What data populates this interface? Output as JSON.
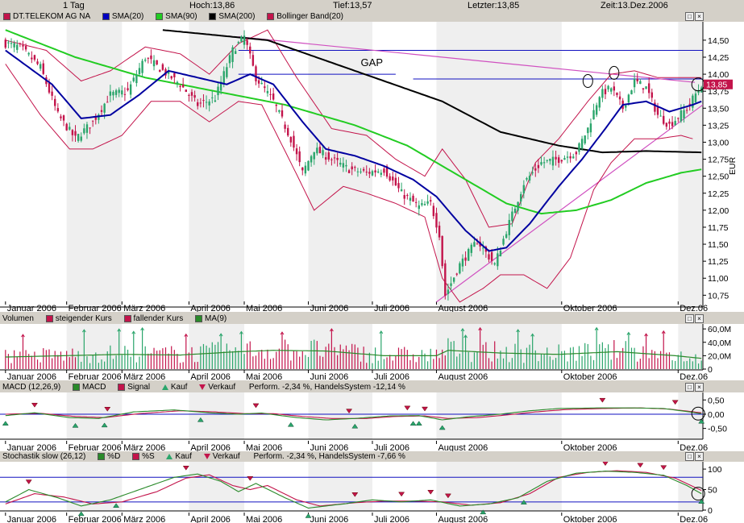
{
  "topbar": {
    "interval": "1 Tag",
    "high": "Hoch:13,86",
    "low": "Tief:13,57",
    "last": "Letzter:13,85",
    "time": "Zeit:13.Dez.2006"
  },
  "colors": {
    "price_up": "#c3144b",
    "price_down": "#2aa56b",
    "sma20": "#0000a0",
    "sma90": "#22cc22",
    "sma200": "#000000",
    "bollinger": "#c3144b",
    "volume_ma": "#2a8a2a",
    "ref_line": "#1010c0",
    "trend_line": "#d050c0",
    "price_label_bg": "#c3144b"
  },
  "months": [
    "Januar 2006",
    "Februar 2006",
    "März 2006",
    "April 2006",
    "Mai 2006",
    "Juni 2006",
    "Juli 2006",
    "August 2006",
    "Oktober 2006",
    "Dez.06"
  ],
  "price_panel": {
    "legend": [
      {
        "label": "DT.TELEKOM AG NA",
        "color": "#c3144b"
      },
      {
        "label": "SMA(20)",
        "color": "#0000c0"
      },
      {
        "label": "SMA(90)",
        "color": "#22cc22"
      },
      {
        "label": "SMA(200)",
        "color": "#000000"
      },
      {
        "label": "Bollinger Band(20)",
        "color": "#c3144b"
      }
    ],
    "annotation": "GAP",
    "current_price_label": "13,85",
    "yunit": "EUR",
    "ylim": [
      10.6,
      14.7
    ],
    "yticks": [
      "10,75",
      "11,00",
      "11,25",
      "11,50",
      "11,75",
      "12,00",
      "12,25",
      "12,50",
      "12,75",
      "13,00",
      "13,25",
      "13,50",
      "13,75",
      "14,00",
      "14,25",
      "14,50"
    ]
  },
  "volume_panel": {
    "legend": [
      {
        "label": "Volumen",
        "marker": "none"
      },
      {
        "label": "steigender Kurs",
        "color": "#c3144b"
      },
      {
        "label": "fallender Kurs",
        "color": "#c3144b"
      },
      {
        "label": "MA(9)",
        "color": "#2a8a2a"
      }
    ],
    "ylim": [
      0,
      65
    ],
    "yticks": [
      "60,0M",
      "40,0M",
      "20,0M",
      "0"
    ]
  },
  "macd_panel": {
    "legend": [
      {
        "label": "MACD (12,26,9)",
        "marker": "none"
      },
      {
        "label": "MACD",
        "color": "#2a8a2a"
      },
      {
        "label": "Signal",
        "color": "#c3144b"
      },
      {
        "label": "Kauf",
        "marker": "up"
      },
      {
        "label": "Verkauf",
        "marker": "down"
      },
      {
        "label": "Perform. -2,34 %, HandelsSystem -12,14 %",
        "marker": "none"
      }
    ],
    "ylim": [
      -0.85,
      0.65
    ],
    "yticks": [
      "0,50",
      "0,00",
      "-0,50"
    ]
  },
  "stoch_panel": {
    "legend": [
      {
        "label": "Stochastik slow (26,12)",
        "marker": "none"
      },
      {
        "label": "%D",
        "color": "#2a8a2a"
      },
      {
        "label": "%S",
        "color": "#c3144b"
      },
      {
        "label": "Kauf",
        "marker": "up"
      },
      {
        "label": "Verkauf",
        "marker": "down"
      },
      {
        "label": "Perform. -2,34 %, HandelsSystem -7,66 %",
        "marker": "none"
      }
    ],
    "ylim": [
      0,
      110
    ],
    "yticks": [
      "100",
      "50",
      "0"
    ]
  },
  "chart_data": {
    "type": "line",
    "title": "DT.TELEKOM AG NA",
    "ylabel": "EUR",
    "trading_days": 240,
    "month_start_index": [
      0,
      21,
      40,
      63,
      82,
      104,
      126,
      148,
      191,
      231
    ],
    "price_waypoints": [
      [
        0,
        14.45
      ],
      [
        5,
        14.4
      ],
      [
        12,
        14.1
      ],
      [
        18,
        13.4
      ],
      [
        24,
        13.05
      ],
      [
        30,
        13.3
      ],
      [
        36,
        13.7
      ],
      [
        42,
        13.75
      ],
      [
        48,
        14.25
      ],
      [
        54,
        14.05
      ],
      [
        60,
        13.85
      ],
      [
        66,
        13.55
      ],
      [
        72,
        13.65
      ],
      [
        78,
        14.35
      ],
      [
        82,
        14.55
      ],
      [
        86,
        13.95
      ],
      [
        92,
        13.6
      ],
      [
        98,
        13.05
      ],
      [
        102,
        12.55
      ],
      [
        106,
        12.9
      ],
      [
        112,
        12.75
      ],
      [
        118,
        12.6
      ],
      [
        124,
        12.55
      ],
      [
        130,
        12.6
      ],
      [
        136,
        12.25
      ],
      [
        142,
        12.05
      ],
      [
        146,
        12.1
      ],
      [
        149,
        11.65
      ],
      [
        151,
        10.75
      ],
      [
        156,
        11.2
      ],
      [
        162,
        11.55
      ],
      [
        168,
        11.2
      ],
      [
        172,
        11.7
      ],
      [
        178,
        12.4
      ],
      [
        184,
        12.7
      ],
      [
        190,
        12.75
      ],
      [
        196,
        12.85
      ],
      [
        200,
        13.2
      ],
      [
        204,
        13.7
      ],
      [
        208,
        13.8
      ],
      [
        212,
        13.5
      ],
      [
        216,
        13.9
      ],
      [
        220,
        13.8
      ],
      [
        224,
        13.4
      ],
      [
        228,
        13.25
      ],
      [
        234,
        13.5
      ],
      [
        239,
        13.85
      ]
    ],
    "sma20_waypoints": [
      [
        0,
        14.35
      ],
      [
        16,
        13.85
      ],
      [
        26,
        13.35
      ],
      [
        36,
        13.4
      ],
      [
        46,
        13.7
      ],
      [
        56,
        14.05
      ],
      [
        66,
        13.95
      ],
      [
        76,
        13.85
      ],
      [
        84,
        14.0
      ],
      [
        92,
        13.85
      ],
      [
        102,
        13.3
      ],
      [
        110,
        12.9
      ],
      [
        120,
        12.8
      ],
      [
        130,
        12.65
      ],
      [
        140,
        12.45
      ],
      [
        148,
        12.2
      ],
      [
        158,
        11.7
      ],
      [
        166,
        11.4
      ],
      [
        172,
        11.45
      ],
      [
        180,
        11.8
      ],
      [
        190,
        12.35
      ],
      [
        198,
        12.75
      ],
      [
        206,
        13.2
      ],
      [
        212,
        13.55
      ],
      [
        220,
        13.6
      ],
      [
        228,
        13.45
      ],
      [
        236,
        13.55
      ],
      [
        239,
        13.6
      ]
    ],
    "sma90_waypoints": [
      [
        0,
        14.65
      ],
      [
        24,
        14.25
      ],
      [
        48,
        13.95
      ],
      [
        72,
        13.75
      ],
      [
        96,
        13.55
      ],
      [
        120,
        13.25
      ],
      [
        138,
        12.95
      ],
      [
        150,
        12.65
      ],
      [
        162,
        12.35
      ],
      [
        172,
        12.1
      ],
      [
        184,
        11.95
      ],
      [
        196,
        12.0
      ],
      [
        208,
        12.15
      ],
      [
        220,
        12.4
      ],
      [
        232,
        12.55
      ],
      [
        239,
        12.6
      ]
    ],
    "sma200_waypoints": [
      [
        54,
        14.65
      ],
      [
        90,
        14.5
      ],
      [
        120,
        14.05
      ],
      [
        150,
        13.6
      ],
      [
        170,
        13.15
      ],
      [
        190,
        12.95
      ],
      [
        205,
        12.85
      ],
      [
        220,
        12.87
      ],
      [
        239,
        12.85
      ]
    ],
    "bb_upper_waypoints": [
      [
        0,
        14.5
      ],
      [
        14,
        14.35
      ],
      [
        26,
        13.9
      ],
      [
        36,
        14.05
      ],
      [
        48,
        14.4
      ],
      [
        60,
        14.3
      ],
      [
        70,
        14.0
      ],
      [
        80,
        14.45
      ],
      [
        90,
        14.65
      ],
      [
        100,
        13.95
      ],
      [
        112,
        13.2
      ],
      [
        124,
        13.1
      ],
      [
        134,
        12.75
      ],
      [
        144,
        12.5
      ],
      [
        150,
        12.9
      ],
      [
        158,
        12.45
      ],
      [
        166,
        11.75
      ],
      [
        174,
        11.8
      ],
      [
        182,
        12.7
      ],
      [
        190,
        13.05
      ],
      [
        200,
        13.6
      ],
      [
        208,
        14.0
      ],
      [
        216,
        14.05
      ],
      [
        224,
        13.95
      ],
      [
        232,
        13.95
      ],
      [
        239,
        13.95
      ]
    ],
    "bb_lower_waypoints": [
      [
        0,
        14.15
      ],
      [
        12,
        13.4
      ],
      [
        22,
        12.9
      ],
      [
        30,
        12.9
      ],
      [
        40,
        13.1
      ],
      [
        50,
        13.6
      ],
      [
        60,
        13.6
      ],
      [
        70,
        13.3
      ],
      [
        80,
        13.6
      ],
      [
        88,
        13.55
      ],
      [
        98,
        12.7
      ],
      [
        106,
        12.0
      ],
      [
        116,
        12.35
      ],
      [
        124,
        12.25
      ],
      [
        134,
        12.1
      ],
      [
        144,
        11.9
      ],
      [
        150,
        11.0
      ],
      [
        156,
        10.65
      ],
      [
        164,
        10.85
      ],
      [
        170,
        11.05
      ],
      [
        178,
        11.05
      ],
      [
        186,
        10.85
      ],
      [
        194,
        11.3
      ],
      [
        202,
        12.3
      ],
      [
        208,
        12.7
      ],
      [
        216,
        13.05
      ],
      [
        224,
        13.05
      ],
      [
        232,
        13.1
      ],
      [
        236,
        13.05
      ]
    ],
    "volume_ma_waypoints": [
      [
        0,
        18
      ],
      [
        20,
        20
      ],
      [
        40,
        22
      ],
      [
        60,
        21
      ],
      [
        80,
        26
      ],
      [
        92,
        28
      ],
      [
        110,
        27
      ],
      [
        130,
        20
      ],
      [
        148,
        20
      ],
      [
        152,
        28
      ],
      [
        170,
        24
      ],
      [
        190,
        22
      ],
      [
        210,
        26
      ],
      [
        230,
        20
      ],
      [
        239,
        16
      ]
    ],
    "macd_waypoints": [
      [
        0,
        -0.05
      ],
      [
        10,
        0.05
      ],
      [
        22,
        -0.12
      ],
      [
        32,
        -0.15
      ],
      [
        44,
        0.08
      ],
      [
        58,
        0.15
      ],
      [
        70,
        0.05
      ],
      [
        80,
        0.0
      ],
      [
        88,
        0.04
      ],
      [
        100,
        -0.12
      ],
      [
        110,
        -0.2
      ],
      [
        120,
        -0.15
      ],
      [
        132,
        -0.06
      ],
      [
        142,
        -0.05
      ],
      [
        150,
        -0.2
      ],
      [
        160,
        -0.08
      ],
      [
        170,
        0.0
      ],
      [
        180,
        0.12
      ],
      [
        190,
        0.2
      ],
      [
        204,
        0.22
      ],
      [
        216,
        0.22
      ],
      [
        226,
        0.2
      ],
      [
        232,
        0.12
      ],
      [
        239,
        0.02
      ]
    ],
    "signal_waypoints": [
      [
        0,
        0.0
      ],
      [
        12,
        0.03
      ],
      [
        24,
        -0.08
      ],
      [
        34,
        -0.12
      ],
      [
        46,
        0.02
      ],
      [
        60,
        0.12
      ],
      [
        72,
        0.08
      ],
      [
        82,
        0.02
      ],
      [
        92,
        0.02
      ],
      [
        102,
        -0.08
      ],
      [
        112,
        -0.15
      ],
      [
        124,
        -0.15
      ],
      [
        134,
        -0.08
      ],
      [
        144,
        -0.06
      ],
      [
        152,
        -0.15
      ],
      [
        162,
        -0.12
      ],
      [
        172,
        -0.03
      ],
      [
        182,
        0.08
      ],
      [
        192,
        0.16
      ],
      [
        206,
        0.2
      ],
      [
        218,
        0.22
      ],
      [
        228,
        0.18
      ],
      [
        239,
        0.05
      ]
    ],
    "stoch_d_waypoints": [
      [
        0,
        20
      ],
      [
        8,
        50
      ],
      [
        18,
        30
      ],
      [
        26,
        10
      ],
      [
        36,
        25
      ],
      [
        48,
        55
      ],
      [
        58,
        80
      ],
      [
        66,
        88
      ],
      [
        74,
        70
      ],
      [
        80,
        45
      ],
      [
        86,
        65
      ],
      [
        96,
        30
      ],
      [
        104,
        5
      ],
      [
        116,
        15
      ],
      [
        126,
        25
      ],
      [
        136,
        20
      ],
      [
        146,
        25
      ],
      [
        156,
        10
      ],
      [
        166,
        15
      ],
      [
        176,
        30
      ],
      [
        186,
        70
      ],
      [
        196,
        90
      ],
      [
        206,
        95
      ],
      [
        216,
        92
      ],
      [
        226,
        85
      ],
      [
        234,
        60
      ],
      [
        239,
        40
      ]
    ],
    "stoch_s_waypoints": [
      [
        0,
        15
      ],
      [
        10,
        40
      ],
      [
        20,
        32
      ],
      [
        30,
        15
      ],
      [
        40,
        20
      ],
      [
        52,
        45
      ],
      [
        62,
        78
      ],
      [
        70,
        86
      ],
      [
        78,
        60
      ],
      [
        84,
        50
      ],
      [
        90,
        60
      ],
      [
        100,
        25
      ],
      [
        108,
        10
      ],
      [
        120,
        18
      ],
      [
        130,
        22
      ],
      [
        140,
        22
      ],
      [
        150,
        20
      ],
      [
        160,
        12
      ],
      [
        170,
        18
      ],
      [
        180,
        40
      ],
      [
        190,
        80
      ],
      [
        200,
        92
      ],
      [
        210,
        96
      ],
      [
        220,
        92
      ],
      [
        230,
        78
      ],
      [
        239,
        48
      ]
    ],
    "macd_buy_idx": [
      0,
      24,
      34,
      67,
      98,
      120,
      140,
      142,
      150,
      239
    ],
    "macd_sell_idx": [
      10,
      35,
      86,
      118,
      138,
      144,
      205,
      230
    ],
    "stoch_buy_idx": [
      26,
      38,
      104,
      164,
      178,
      239
    ],
    "stoch_sell_idx": [
      8,
      62,
      84,
      120,
      136,
      146,
      152,
      206,
      218,
      226
    ]
  }
}
